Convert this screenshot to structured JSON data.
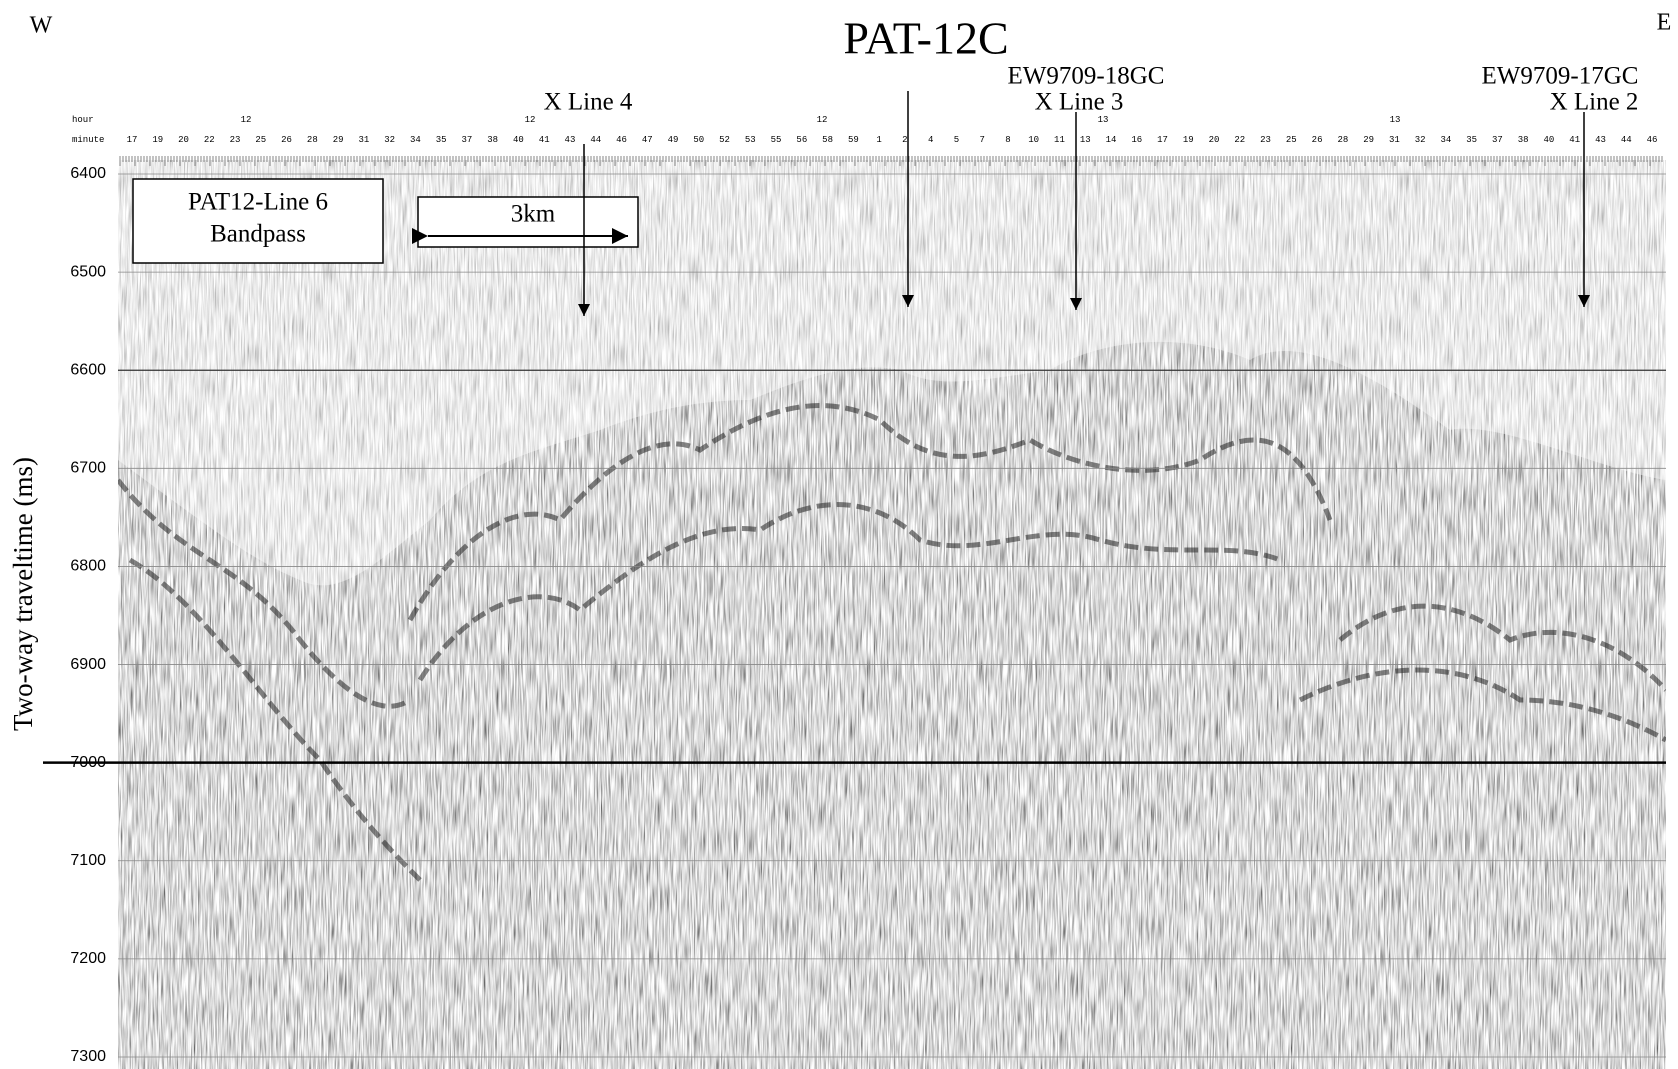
{
  "labels": {
    "west": "W",
    "east": "E",
    "title": "PAT-12C",
    "y_axis": "Two-way traveltime (ms)",
    "box": [
      "PAT12-Line 6",
      "Bandpass"
    ],
    "scale": "3km"
  },
  "crosslines": [
    {
      "lines": [
        "X Line 4"
      ]
    },
    {
      "lines": [
        "EW9709-18GC",
        "X Line 3"
      ]
    },
    {
      "lines": [
        "EW9709-17GC",
        "X Line 2"
      ]
    }
  ],
  "axis": {
    "hour_label": "hour",
    "minute_label": "minute",
    "hours": [
      "12",
      "12",
      "12",
      "13",
      "13"
    ],
    "minutes": [
      "17",
      "19",
      "20",
      "22",
      "23",
      "25",
      "26",
      "28",
      "29",
      "31",
      "32",
      "34",
      "35",
      "37",
      "38",
      "40",
      "41",
      "43",
      "44",
      "46",
      "47",
      "49",
      "50",
      "52",
      "53",
      "55",
      "56",
      "58",
      "59",
      "1",
      "2",
      "4",
      "5",
      "7",
      "8",
      "10",
      "11",
      "13",
      "14",
      "16",
      "17",
      "19",
      "20",
      "22",
      "23",
      "25",
      "26",
      "28",
      "29",
      "31",
      "32",
      "34",
      "35",
      "37",
      "38",
      "40",
      "41",
      "43",
      "44",
      "46"
    ],
    "yticks": [
      6400,
      6500,
      6600,
      6700,
      6800,
      6900,
      7000,
      7100,
      7200,
      7300
    ]
  }
}
